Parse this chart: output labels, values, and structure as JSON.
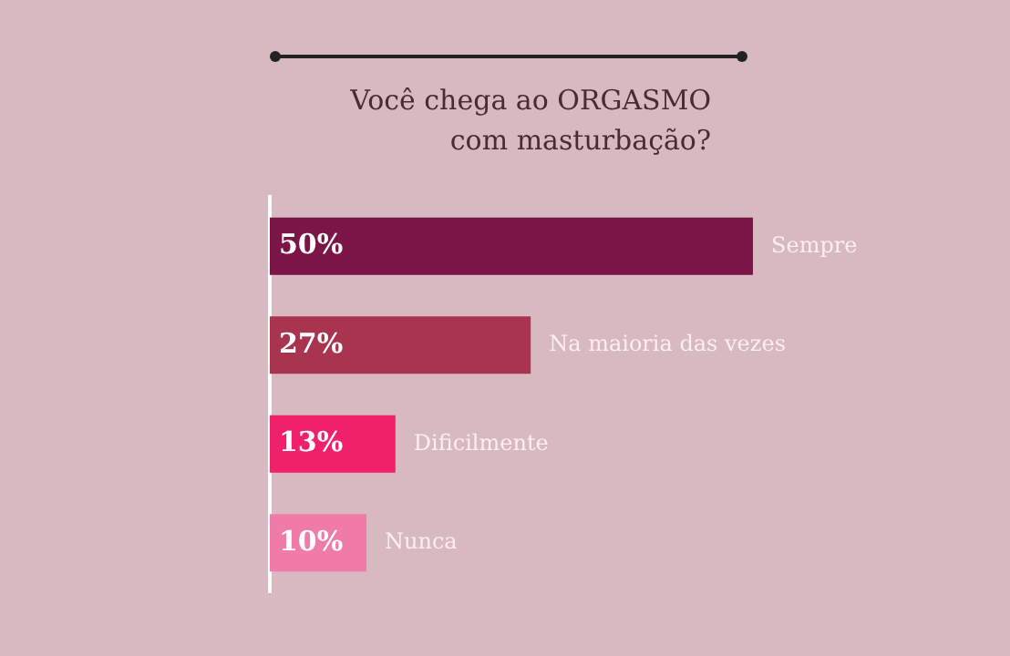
{
  "chart_data": {
    "type": "bar",
    "orientation": "horizontal",
    "title": "Você chega ao ORGASMO com masturbação?",
    "categories": [
      "Sempre",
      "Na maioria das vezes",
      "Dificilmente",
      "Nunca"
    ],
    "values": [
      50,
      27,
      13,
      10
    ],
    "colors": [
      "#7b1547",
      "#a8344f",
      "#f0206a",
      "#f07aa8"
    ],
    "value_labels": [
      "50%",
      "27%",
      "13%",
      "10%"
    ],
    "grid": false,
    "legend": false
  }
}
